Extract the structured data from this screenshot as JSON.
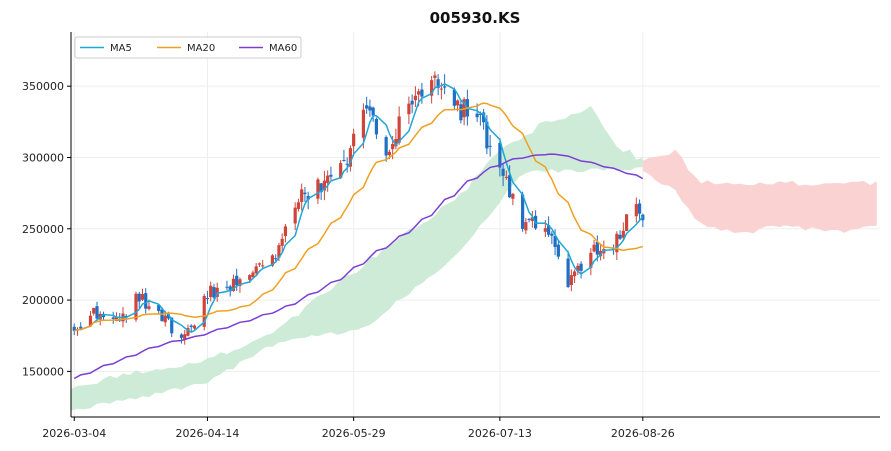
{
  "chart_data": {
    "type": "candlestick",
    "title": "005930.KS",
    "xlabel": "",
    "ylabel": "",
    "ylim": [
      118000,
      388000
    ],
    "x_range": [
      "2026-03-03",
      "2026-11-07"
    ],
    "x_ticks": [
      "2026-03-04",
      "2026-04-14",
      "2026-05-29",
      "2026-07-13",
      "2026-08-26"
    ],
    "y_ticks": [
      150000,
      200000,
      250000,
      300000,
      350000
    ],
    "grid": true,
    "legend_position": "top-left",
    "colors": {
      "up": "#d0453a",
      "down": "#1f6fc4",
      "ma5": "#1fa7d8",
      "ma20": "#f0a020",
      "ma60": "#7b3fd6",
      "cloud_bull": "#cdebd6",
      "cloud_bear": "#fbd2d2",
      "grid": "#eeeeee"
    },
    "ohlc_series": {
      "name": "005930.KS",
      "control_points": [
        {
          "date": "2026-03-04",
          "close": 180000
        },
        {
          "date": "2026-03-10",
          "close": 192000
        },
        {
          "date": "2026-03-17",
          "close": 185000
        },
        {
          "date": "2026-03-24",
          "close": 203000
        },
        {
          "date": "2026-03-31",
          "close": 188000
        },
        {
          "date": "2026-04-07",
          "close": 172000
        },
        {
          "date": "2026-04-14",
          "close": 205000
        },
        {
          "date": "2026-04-21",
          "close": 210000
        },
        {
          "date": "2026-04-28",
          "close": 218000
        },
        {
          "date": "2026-05-05",
          "close": 228000
        },
        {
          "date": "2026-05-12",
          "close": 275000
        },
        {
          "date": "2026-05-19",
          "close": 280000
        },
        {
          "date": "2026-05-26",
          "close": 295000
        },
        {
          "date": "2026-06-01",
          "close": 335000
        },
        {
          "date": "2026-06-08",
          "close": 305000
        },
        {
          "date": "2026-06-15",
          "close": 340000
        },
        {
          "date": "2026-06-22",
          "close": 355000
        },
        {
          "date": "2026-06-29",
          "close": 335000
        },
        {
          "date": "2026-07-06",
          "close": 330000
        },
        {
          "date": "2026-07-13",
          "close": 290000
        },
        {
          "date": "2026-07-20",
          "close": 255000
        },
        {
          "date": "2026-07-27",
          "close": 255000
        },
        {
          "date": "2026-08-03",
          "close": 210000
        },
        {
          "date": "2026-08-10",
          "close": 235000
        },
        {
          "date": "2026-08-17",
          "close": 240000
        },
        {
          "date": "2026-08-24",
          "close": 265000
        },
        {
          "date": "2026-08-26",
          "close": 262000
        }
      ]
    },
    "series": [
      {
        "name": "MA5",
        "window": 5
      },
      {
        "name": "MA20",
        "window": 20
      },
      {
        "name": "MA60",
        "window": 60
      }
    ],
    "ichimoku_cloud": {
      "bull_lower": [
        {
          "date": "2026-03-03",
          "value": 122000
        },
        {
          "date": "2026-04-14",
          "value": 142000
        },
        {
          "date": "2026-05-05",
          "value": 170000
        },
        {
          "date": "2026-06-01",
          "value": 180000
        },
        {
          "date": "2026-06-15",
          "value": 205000
        },
        {
          "date": "2026-06-29",
          "value": 230000
        },
        {
          "date": "2026-07-13",
          "value": 268000
        },
        {
          "date": "2026-07-20",
          "value": 290000
        },
        {
          "date": "2026-08-26",
          "value": 292000
        }
      ],
      "bull_upper": [
        {
          "date": "2026-03-03",
          "value": 140000
        },
        {
          "date": "2026-04-14",
          "value": 158000
        },
        {
          "date": "2026-05-05",
          "value": 178000
        },
        {
          "date": "2026-06-01",
          "value": 225000
        },
        {
          "date": "2026-06-15",
          "value": 250000
        },
        {
          "date": "2026-06-29",
          "value": 268000
        },
        {
          "date": "2026-07-13",
          "value": 305000
        },
        {
          "date": "2026-07-27",
          "value": 325000
        },
        {
          "date": "2026-08-10",
          "value": 335000
        },
        {
          "date": "2026-08-17",
          "value": 310000
        },
        {
          "date": "2026-08-26",
          "value": 298000
        }
      ],
      "bear_upper": [
        {
          "date": "2026-08-26",
          "value": 300000
        },
        {
          "date": "2026-09-05",
          "value": 305000
        },
        {
          "date": "2026-09-12",
          "value": 282000
        },
        {
          "date": "2026-11-06",
          "value": 282000
        }
      ],
      "bear_lower": [
        {
          "date": "2026-08-26",
          "value": 290000
        },
        {
          "date": "2026-09-05",
          "value": 276000
        },
        {
          "date": "2026-09-12",
          "value": 254000
        },
        {
          "date": "2026-09-26",
          "value": 246000
        },
        {
          "date": "2026-10-05",
          "value": 252000
        },
        {
          "date": "2026-10-25",
          "value": 248000
        },
        {
          "date": "2026-11-06",
          "value": 252000
        }
      ]
    }
  }
}
